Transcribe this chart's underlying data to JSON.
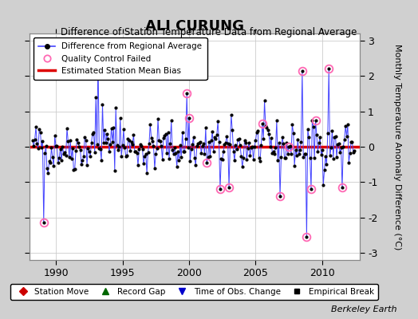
{
  "title": "ALI CURUNG",
  "subtitle": "Difference of Station Temperature Data from Regional Average",
  "ylabel": "Monthly Temperature Anomaly Difference (°C)",
  "xlabel_credit": "Berkeley Earth",
  "xlim": [
    1988.0,
    2012.8
  ],
  "ylim": [
    -3.2,
    3.2
  ],
  "yticks": [
    -3,
    -2,
    -1,
    0,
    1,
    2,
    3
  ],
  "xticks": [
    1990,
    1995,
    2000,
    2005,
    2010
  ],
  "bias_line_y": 0.0,
  "fig_bg_color": "#d0d0d0",
  "plot_bg_color": "#ffffff",
  "line_color": "#4444ff",
  "dot_color": "#000000",
  "bias_color": "#dd0000",
  "qc_color": "#ff69b4",
  "seed": 7
}
